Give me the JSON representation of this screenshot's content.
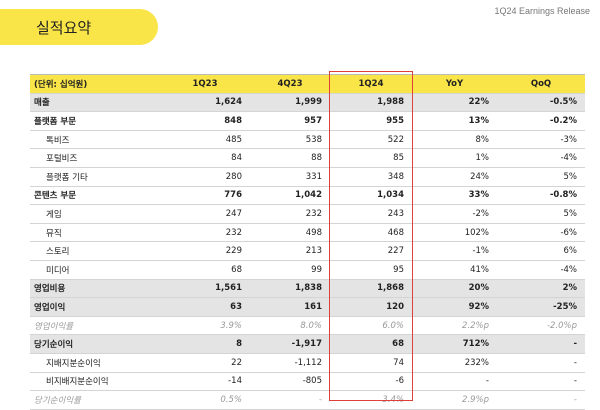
{
  "header": {
    "title": "실적요약",
    "release": "1Q24 Earnings Release"
  },
  "table": {
    "columns": [
      "(단위: 십억원)",
      "1Q23",
      "4Q23",
      "1Q24",
      "YoY",
      "QoQ"
    ],
    "rows": [
      [
        "매출",
        "1,624",
        "1,999",
        "1,988",
        "22%",
        "-0.5%"
      ],
      [
        "플랫폼 부문",
        "848",
        "957",
        "955",
        "13%",
        "-0.2%"
      ],
      [
        "톡비즈",
        "485",
        "538",
        "522",
        "8%",
        "-3%"
      ],
      [
        "포털비즈",
        "84",
        "88",
        "85",
        "1%",
        "-4%"
      ],
      [
        "플랫폼 기타",
        "280",
        "331",
        "348",
        "24%",
        "5%"
      ],
      [
        "콘텐츠 부문",
        "776",
        "1,042",
        "1,034",
        "33%",
        "-0.8%"
      ],
      [
        "게임",
        "247",
        "232",
        "243",
        "-2%",
        "5%"
      ],
      [
        "뮤직",
        "232",
        "498",
        "468",
        "102%",
        "-6%"
      ],
      [
        "스토리",
        "229",
        "213",
        "227",
        "-1%",
        "6%"
      ],
      [
        "미디어",
        "68",
        "99",
        "95",
        "41%",
        "-4%"
      ],
      [
        "영업비용",
        "1,561",
        "1,838",
        "1,868",
        "20%",
        "2%"
      ],
      [
        "영업이익",
        "63",
        "161",
        "120",
        "92%",
        "-25%"
      ],
      [
        "영업이익률",
        "3.9%",
        "8.0%",
        "6.0%",
        "2.2%p",
        "-2.0%p"
      ],
      [
        "당기순이익",
        "8",
        "-1,917",
        "68",
        "712%",
        "-"
      ],
      [
        "지배지분순이익",
        "22",
        "-1,112",
        "74",
        "232%",
        "-"
      ],
      [
        "비지배지분순이익",
        "-14",
        "-805",
        "-6",
        "-",
        "-"
      ],
      [
        "당기순이익률",
        "0.5%",
        "-",
        "3.4%",
        "2.9%p",
        "-"
      ]
    ]
  }
}
